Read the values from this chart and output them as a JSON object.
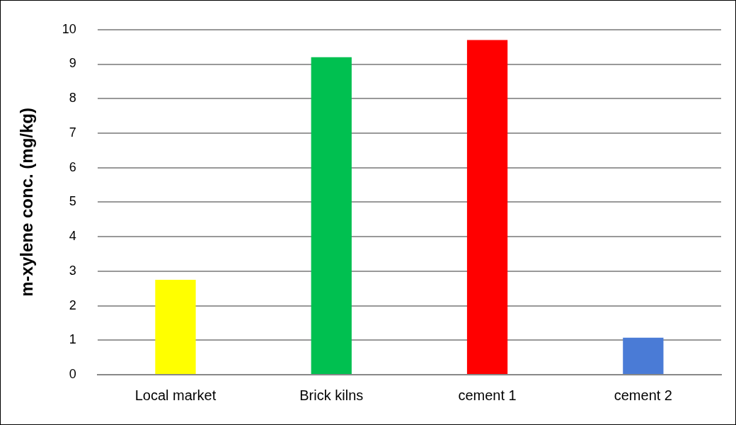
{
  "chart_data": {
    "type": "bar",
    "ylabel": "m-xylene conc. (mg/kg)",
    "categories": [
      "Local market",
      "Brick kilns",
      "cement 1",
      "cement 2"
    ],
    "values": [
      2.75,
      9.2,
      9.7,
      1.07
    ],
    "colors": [
      "#ffff00",
      "#00c050",
      "#ff0000",
      "#4a7bd6"
    ],
    "ylim": [
      0,
      10
    ],
    "yticks": [
      0,
      1,
      2,
      3,
      4,
      5,
      6,
      7,
      8,
      9,
      10
    ],
    "grid": "y",
    "legend": false
  }
}
